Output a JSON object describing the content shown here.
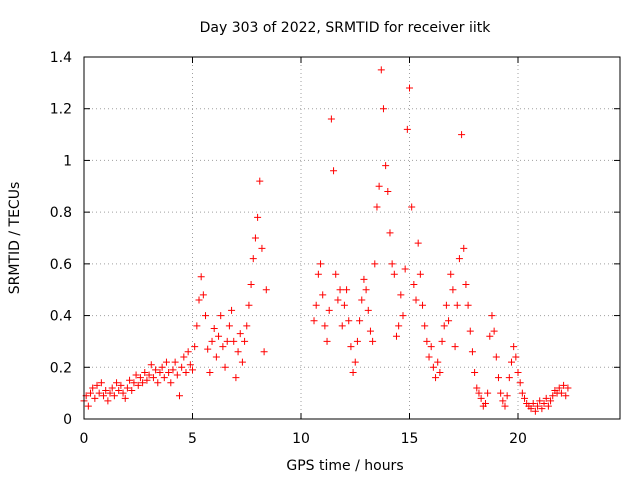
{
  "chart_data": {
    "type": "scatter",
    "title": "Day 303 of 2022, SRMTID for receiver iitk",
    "xlabel": "GPS time / hours",
    "ylabel": "SRMTID / TECUs",
    "xlim": [
      0,
      24.7
    ],
    "ylim": [
      0,
      1.4
    ],
    "x_ticks": [
      0,
      5,
      10,
      15,
      20
    ],
    "x_tick_labels": [
      "0",
      "5",
      "10",
      "15",
      "20"
    ],
    "y_ticks": [
      0,
      0.2,
      0.4,
      0.6,
      0.8,
      1.0,
      1.2,
      1.4
    ],
    "y_tick_labels": [
      "0",
      "0.2",
      "0.4",
      "0.6",
      "0.8",
      "1",
      "1.2",
      "1.4"
    ],
    "grid": true,
    "marker": "+",
    "marker_color": "#ff0000",
    "series": [
      {
        "name": "SRMTID",
        "points": [
          [
            0.0,
            0.07
          ],
          [
            0.1,
            0.09
          ],
          [
            0.2,
            0.05
          ],
          [
            0.3,
            0.1
          ],
          [
            0.4,
            0.12
          ],
          [
            0.5,
            0.08
          ],
          [
            0.6,
            0.13
          ],
          [
            0.7,
            0.1
          ],
          [
            0.8,
            0.14
          ],
          [
            0.9,
            0.09
          ],
          [
            1.0,
            0.11
          ],
          [
            1.1,
            0.07
          ],
          [
            1.2,
            0.1
          ],
          [
            1.3,
            0.12
          ],
          [
            1.4,
            0.09
          ],
          [
            1.5,
            0.14
          ],
          [
            1.6,
            0.11
          ],
          [
            1.7,
            0.13
          ],
          [
            1.8,
            0.1
          ],
          [
            1.9,
            0.08
          ],
          [
            2.0,
            0.12
          ],
          [
            2.1,
            0.15
          ],
          [
            2.2,
            0.11
          ],
          [
            2.3,
            0.14
          ],
          [
            2.4,
            0.17
          ],
          [
            2.5,
            0.13
          ],
          [
            2.6,
            0.16
          ],
          [
            2.7,
            0.14
          ],
          [
            2.8,
            0.18
          ],
          [
            2.9,
            0.15
          ],
          [
            3.0,
            0.17
          ],
          [
            3.1,
            0.21
          ],
          [
            3.2,
            0.16
          ],
          [
            3.3,
            0.19
          ],
          [
            3.4,
            0.14
          ],
          [
            3.5,
            0.18
          ],
          [
            3.6,
            0.2
          ],
          [
            3.7,
            0.16
          ],
          [
            3.8,
            0.22
          ],
          [
            3.9,
            0.18
          ],
          [
            4.0,
            0.14
          ],
          [
            4.1,
            0.19
          ],
          [
            4.2,
            0.22
          ],
          [
            4.3,
            0.17
          ],
          [
            4.4,
            0.09
          ],
          [
            4.5,
            0.2
          ],
          [
            4.6,
            0.24
          ],
          [
            4.7,
            0.18
          ],
          [
            4.8,
            0.26
          ],
          [
            4.9,
            0.21
          ],
          [
            5.0,
            0.19
          ],
          [
            5.1,
            0.28
          ],
          [
            5.2,
            0.36
          ],
          [
            5.3,
            0.46
          ],
          [
            5.4,
            0.55
          ],
          [
            5.5,
            0.48
          ],
          [
            5.6,
            0.4
          ],
          [
            5.7,
            0.27
          ],
          [
            5.8,
            0.18
          ],
          [
            5.9,
            0.3
          ],
          [
            6.0,
            0.35
          ],
          [
            6.1,
            0.24
          ],
          [
            6.2,
            0.32
          ],
          [
            6.3,
            0.4
          ],
          [
            6.4,
            0.28
          ],
          [
            6.5,
            0.2
          ],
          [
            6.6,
            0.3
          ],
          [
            6.7,
            0.36
          ],
          [
            6.8,
            0.42
          ],
          [
            6.9,
            0.3
          ],
          [
            7.0,
            0.16
          ],
          [
            7.1,
            0.26
          ],
          [
            7.2,
            0.33
          ],
          [
            7.3,
            0.22
          ],
          [
            7.4,
            0.3
          ],
          [
            7.5,
            0.36
          ],
          [
            7.6,
            0.44
          ],
          [
            7.7,
            0.52
          ],
          [
            7.8,
            0.62
          ],
          [
            7.9,
            0.7
          ],
          [
            8.0,
            0.78
          ],
          [
            8.1,
            0.92
          ],
          [
            8.2,
            0.66
          ],
          [
            8.3,
            0.26
          ],
          [
            8.4,
            0.5
          ],
          [
            10.6,
            0.38
          ],
          [
            10.7,
            0.44
          ],
          [
            10.8,
            0.56
          ],
          [
            10.9,
            0.6
          ],
          [
            11.0,
            0.48
          ],
          [
            11.1,
            0.36
          ],
          [
            11.2,
            0.3
          ],
          [
            11.3,
            0.42
          ],
          [
            11.4,
            1.16
          ],
          [
            11.5,
            0.96
          ],
          [
            11.6,
            0.56
          ],
          [
            11.7,
            0.46
          ],
          [
            11.8,
            0.5
          ],
          [
            11.9,
            0.36
          ],
          [
            12.0,
            0.44
          ],
          [
            12.1,
            0.5
          ],
          [
            12.2,
            0.38
          ],
          [
            12.3,
            0.28
          ],
          [
            12.4,
            0.18
          ],
          [
            12.5,
            0.22
          ],
          [
            12.6,
            0.3
          ],
          [
            12.7,
            0.38
          ],
          [
            12.8,
            0.46
          ],
          [
            12.9,
            0.54
          ],
          [
            13.0,
            0.5
          ],
          [
            13.1,
            0.42
          ],
          [
            13.2,
            0.34
          ],
          [
            13.3,
            0.3
          ],
          [
            13.4,
            0.6
          ],
          [
            13.5,
            0.82
          ],
          [
            13.6,
            0.9
          ],
          [
            13.7,
            1.35
          ],
          [
            13.8,
            1.2
          ],
          [
            13.9,
            0.98
          ],
          [
            14.0,
            0.88
          ],
          [
            14.1,
            0.72
          ],
          [
            14.2,
            0.6
          ],
          [
            14.3,
            0.56
          ],
          [
            14.4,
            0.32
          ],
          [
            14.5,
            0.36
          ],
          [
            14.6,
            0.48
          ],
          [
            14.7,
            0.4
          ],
          [
            14.8,
            0.58
          ],
          [
            14.9,
            1.12
          ],
          [
            15.0,
            1.28
          ],
          [
            15.1,
            0.82
          ],
          [
            15.2,
            0.52
          ],
          [
            15.3,
            0.46
          ],
          [
            15.4,
            0.68
          ],
          [
            15.5,
            0.56
          ],
          [
            15.6,
            0.44
          ],
          [
            15.7,
            0.36
          ],
          [
            15.8,
            0.3
          ],
          [
            15.9,
            0.24
          ],
          [
            16.0,
            0.28
          ],
          [
            16.1,
            0.2
          ],
          [
            16.2,
            0.16
          ],
          [
            16.3,
            0.22
          ],
          [
            16.4,
            0.18
          ],
          [
            16.5,
            0.3
          ],
          [
            16.6,
            0.36
          ],
          [
            16.7,
            0.44
          ],
          [
            16.8,
            0.38
          ],
          [
            16.9,
            0.56
          ],
          [
            17.0,
            0.5
          ],
          [
            17.1,
            0.28
          ],
          [
            17.2,
            0.44
          ],
          [
            17.3,
            0.62
          ],
          [
            17.4,
            1.1
          ],
          [
            17.5,
            0.66
          ],
          [
            17.6,
            0.52
          ],
          [
            17.7,
            0.44
          ],
          [
            17.8,
            0.34
          ],
          [
            17.9,
            0.26
          ],
          [
            18.0,
            0.18
          ],
          [
            18.1,
            0.12
          ],
          [
            18.2,
            0.1
          ],
          [
            18.3,
            0.08
          ],
          [
            18.4,
            0.05
          ],
          [
            18.5,
            0.06
          ],
          [
            18.6,
            0.1
          ],
          [
            18.7,
            0.32
          ],
          [
            18.8,
            0.4
          ],
          [
            18.9,
            0.34
          ],
          [
            19.0,
            0.24
          ],
          [
            19.1,
            0.16
          ],
          [
            19.2,
            0.1
          ],
          [
            19.3,
            0.07
          ],
          [
            19.4,
            0.05
          ],
          [
            19.5,
            0.09
          ],
          [
            19.6,
            0.16
          ],
          [
            19.7,
            0.22
          ],
          [
            19.8,
            0.28
          ],
          [
            19.9,
            0.24
          ],
          [
            20.0,
            0.18
          ],
          [
            20.1,
            0.14
          ],
          [
            20.2,
            0.1
          ],
          [
            20.3,
            0.08
          ],
          [
            20.4,
            0.06
          ],
          [
            20.5,
            0.05
          ],
          [
            20.6,
            0.04
          ],
          [
            20.7,
            0.06
          ],
          [
            20.8,
            0.03
          ],
          [
            20.9,
            0.05
          ],
          [
            21.0,
            0.07
          ],
          [
            21.1,
            0.04
          ],
          [
            21.2,
            0.06
          ],
          [
            21.3,
            0.08
          ],
          [
            21.4,
            0.05
          ],
          [
            21.5,
            0.07
          ],
          [
            21.6,
            0.09
          ],
          [
            21.7,
            0.11
          ],
          [
            21.8,
            0.1
          ],
          [
            21.9,
            0.12
          ],
          [
            22.0,
            0.1
          ],
          [
            22.1,
            0.13
          ],
          [
            22.2,
            0.09
          ],
          [
            22.3,
            0.12
          ]
        ]
      }
    ]
  }
}
